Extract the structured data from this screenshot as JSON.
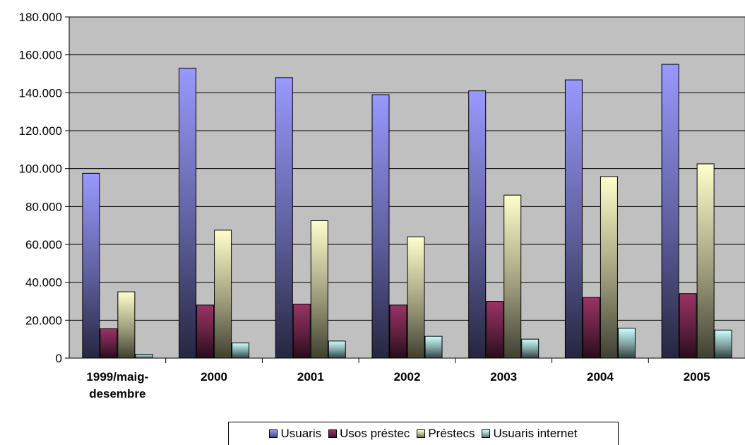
{
  "chart_data": {
    "type": "bar",
    "categories": [
      [
        "1999/maig-",
        "desembre"
      ],
      [
        "2000"
      ],
      [
        "2001"
      ],
      [
        "2002"
      ],
      [
        "2003"
      ],
      [
        "2004"
      ],
      [
        "2005"
      ]
    ],
    "series": [
      {
        "name": "Usuaris",
        "color": "#9999FF",
        "values": [
          97500,
          153000,
          148000,
          139000,
          141000,
          146800,
          155000
        ]
      },
      {
        "name": "Usos préstec",
        "color": "#993366",
        "values": [
          15500,
          28000,
          28500,
          28000,
          30000,
          32000,
          34000
        ]
      },
      {
        "name": "Préstecs",
        "color": "#FFFFCC",
        "values": [
          35000,
          67500,
          72500,
          64000,
          86000,
          95800,
          102500
        ]
      },
      {
        "name": "Usuaris internet",
        "color": "#CCFFFF",
        "values": [
          2000,
          8000,
          9000,
          11500,
          10000,
          15800,
          14800
        ]
      }
    ],
    "y_ticks": [
      "0",
      "20.000",
      "40.000",
      "60.000",
      "80.000",
      "100.000",
      "120.000",
      "140.000",
      "160.000",
      "180.000"
    ],
    "ylim": [
      0,
      180000
    ],
    "grid": true,
    "plot_background": "#C0C0C0",
    "legend_position": "bottom"
  }
}
